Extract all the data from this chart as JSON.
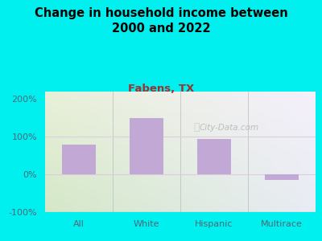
{
  "title": "Change in household income between\n2000 and 2022",
  "subtitle": "Fabens, TX",
  "categories": [
    "All",
    "White",
    "Hispanic",
    "Multirace"
  ],
  "values": [
    80,
    150,
    95,
    -15
  ],
  "bar_color": "#c2a8d4",
  "background_color": "#00efef",
  "plot_bg_topleft": "#e8f0d8",
  "plot_bg_topright": "#f8f4fc",
  "plot_bg_bottomleft": "#d8eccc",
  "plot_bg_bottomright": "#eef0f8",
  "title_fontsize": 11,
  "subtitle_fontsize": 10,
  "subtitle_color": "#a03030",
  "tick_label_color": "#4a6a7a",
  "ylim": [
    -100,
    220
  ],
  "yticks": [
    -100,
    0,
    100,
    200
  ],
  "ytick_labels": [
    "-100%",
    "0%",
    "100%",
    "200%"
  ],
  "watermark": "City-Data.com",
  "grid_line_color": "#ddccdd",
  "bottom_line_color": "#bbbbbb"
}
